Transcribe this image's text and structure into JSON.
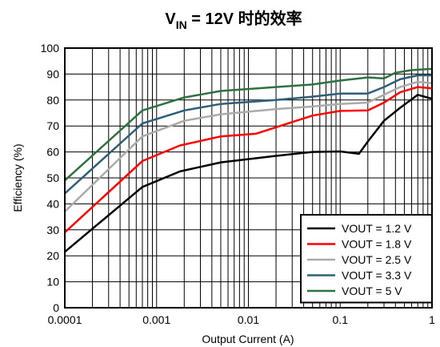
{
  "chart_data": {
    "type": "line",
    "title": {
      "prefix": "V",
      "subscript": "IN",
      "suffix": " = 12V 时的效率"
    },
    "xlabel": "Output Current (A)",
    "ylabel": "Efficiency (%)",
    "x_scale": "log",
    "xlim": [
      0.0001,
      1
    ],
    "ylim": [
      0,
      100
    ],
    "grid": true,
    "legend_position": "bottom-right",
    "x_ticks": [
      {
        "value": 0.0001,
        "label": "0.0001"
      },
      {
        "value": 0.001,
        "label": "0.001"
      },
      {
        "value": 0.01,
        "label": "0.01"
      },
      {
        "value": 0.1,
        "label": "0.1"
      },
      {
        "value": 1,
        "label": "1"
      }
    ],
    "y_ticks": [
      {
        "value": 0,
        "label": "0"
      },
      {
        "value": 10,
        "label": "10"
      },
      {
        "value": 20,
        "label": "20"
      },
      {
        "value": 30,
        "label": "30"
      },
      {
        "value": 40,
        "label": "40"
      },
      {
        "value": 50,
        "label": "50"
      },
      {
        "value": 60,
        "label": "60"
      },
      {
        "value": 70,
        "label": "70"
      },
      {
        "value": 80,
        "label": "80"
      },
      {
        "value": 90,
        "label": "90"
      },
      {
        "value": 100,
        "label": "100"
      }
    ],
    "series": [
      {
        "name": "VOUT = 1.2 V",
        "color": "#000000",
        "points": [
          [
            0.0001,
            21.5
          ],
          [
            0.0007,
            46.5
          ],
          [
            0.0018,
            52.5
          ],
          [
            0.005,
            56
          ],
          [
            0.02,
            58.5
          ],
          [
            0.05,
            60
          ],
          [
            0.1,
            60.2
          ],
          [
            0.16,
            59.3
          ],
          [
            0.2,
            64
          ],
          [
            0.3,
            72
          ],
          [
            0.45,
            77
          ],
          [
            0.7,
            82
          ],
          [
            1,
            80.5
          ]
        ]
      },
      {
        "name": "VOUT = 1.8 V",
        "color": "#ff0000",
        "points": [
          [
            0.0001,
            29
          ],
          [
            0.0007,
            56.5
          ],
          [
            0.0018,
            62.5
          ],
          [
            0.005,
            66
          ],
          [
            0.012,
            67
          ],
          [
            0.05,
            74
          ],
          [
            0.1,
            75.8
          ],
          [
            0.2,
            76
          ],
          [
            0.3,
            79
          ],
          [
            0.45,
            83
          ],
          [
            0.7,
            85
          ],
          [
            1,
            84.5
          ]
        ]
      },
      {
        "name": "VOUT = 2.5 V",
        "color": "#aaaaaa",
        "points": [
          [
            0.0001,
            37
          ],
          [
            0.0007,
            66
          ],
          [
            0.002,
            72
          ],
          [
            0.005,
            74.5
          ],
          [
            0.02,
            76.5
          ],
          [
            0.05,
            77.5
          ],
          [
            0.1,
            78.5
          ],
          [
            0.2,
            79
          ],
          [
            0.3,
            82
          ],
          [
            0.45,
            85
          ],
          [
            0.7,
            87
          ],
          [
            1,
            86.5
          ]
        ]
      },
      {
        "name": "VOUT = 3.3 V",
        "color": "#2e5e78",
        "points": [
          [
            0.0001,
            44
          ],
          [
            0.0007,
            71
          ],
          [
            0.002,
            76
          ],
          [
            0.005,
            78.5
          ],
          [
            0.02,
            80
          ],
          [
            0.05,
            81.3
          ],
          [
            0.1,
            82.5
          ],
          [
            0.2,
            82.5
          ],
          [
            0.3,
            85
          ],
          [
            0.45,
            88
          ],
          [
            0.7,
            89.5
          ],
          [
            1,
            89.5
          ]
        ]
      },
      {
        "name": "VOUT = 5 V",
        "color": "#2e7040",
        "points": [
          [
            0.0001,
            49
          ],
          [
            0.0007,
            76
          ],
          [
            0.002,
            81
          ],
          [
            0.005,
            83.5
          ],
          [
            0.02,
            85
          ],
          [
            0.05,
            86
          ],
          [
            0.1,
            87.5
          ],
          [
            0.2,
            88.7
          ],
          [
            0.3,
            88.3
          ],
          [
            0.4,
            90.5
          ],
          [
            0.6,
            91.5
          ],
          [
            1,
            92
          ]
        ]
      }
    ]
  }
}
